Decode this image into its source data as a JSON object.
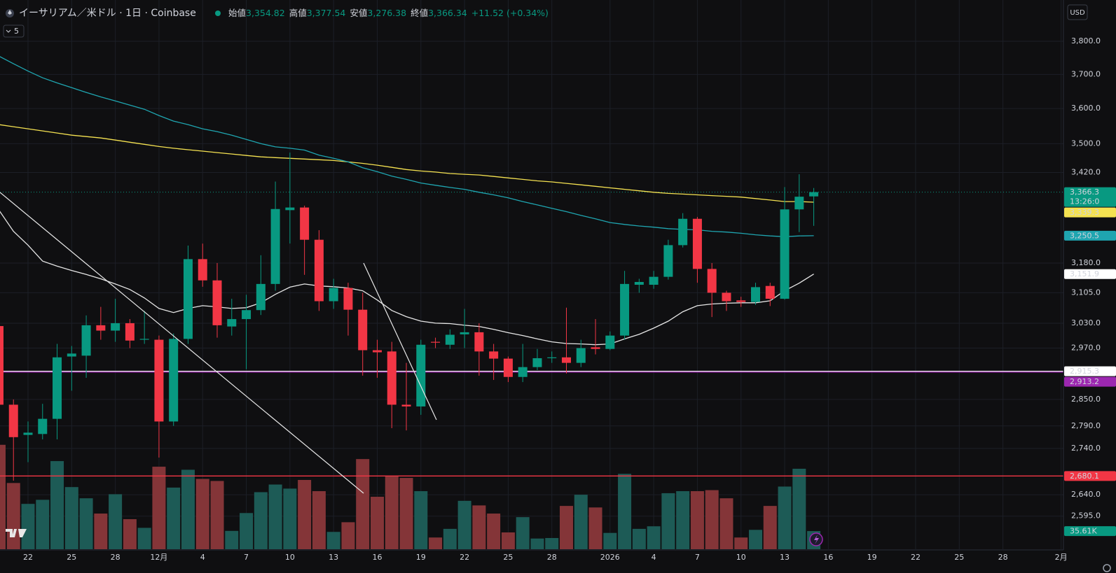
{
  "chart_data": {
    "type": "candlestick",
    "log_scale": true,
    "grid": true,
    "ui": {
      "indicator_count": "5",
      "currency": "USD"
    },
    "legend": {
      "symbol": "イーサリアム／米ドル · 1日 · Coinbase",
      "open_label": "始値",
      "open": "3,354.82",
      "high_label": "高値",
      "high": "3,377.54",
      "low_label": "安値",
      "low": "3,276.38",
      "close_label": "終値",
      "close": "3,366.34",
      "change": "+11.52 (+0.34%)"
    },
    "countdown": "13:26:0",
    "ylim": [
      2527,
      3928
    ],
    "yticks": [
      {
        "value": 3800,
        "label": "3,800.0"
      },
      {
        "value": 3700,
        "label": "3,700.0"
      },
      {
        "value": 3600,
        "label": "3,600.0"
      },
      {
        "value": 3500,
        "label": "3,500.0"
      },
      {
        "value": 3420,
        "label": "3,420.0"
      },
      {
        "value": 3180,
        "label": "3,180.0"
      },
      {
        "value": 3105,
        "label": "3,105.0"
      },
      {
        "value": 3030,
        "label": "3,030.0"
      },
      {
        "value": 2970,
        "label": "2,970.0"
      },
      {
        "value": 2850,
        "label": "2,850.0"
      },
      {
        "value": 2790,
        "label": "2,790.0"
      },
      {
        "value": 2740,
        "label": "2,740.0"
      },
      {
        "value": 2640,
        "label": "2,640.0"
      },
      {
        "value": 2595,
        "label": "2,595.0"
      }
    ],
    "categories": [
      null,
      null,
      "22",
      null,
      null,
      "25",
      null,
      null,
      "28",
      null,
      null,
      "12月",
      null,
      null,
      "4",
      null,
      null,
      "7",
      null,
      null,
      "10",
      null,
      null,
      "13",
      null,
      null,
      "16",
      null,
      null,
      "19",
      null,
      null,
      "22",
      null,
      null,
      "25",
      null,
      null,
      "28",
      null,
      null,
      null,
      "2026",
      null,
      null,
      "4",
      null,
      null,
      "7",
      null,
      null,
      "10",
      null,
      null,
      "13",
      null,
      null,
      "16",
      null,
      null,
      "19",
      null,
      null,
      "22",
      null,
      null,
      "25",
      null,
      null,
      "28",
      null,
      null,
      null,
      "2月"
    ],
    "up_color": "#089981",
    "down_color": "#f23645",
    "candles": {
      "open": [
        3023,
        2838,
        2770,
        2772,
        2806,
        2950,
        2952,
        3025,
        3012,
        3030,
        2990,
        2990,
        2800,
        2992,
        3190,
        3136,
        3022,
        3040,
        3062,
        3127,
        3318,
        3325,
        3240,
        3084,
        3117,
        3063,
        2965,
        2962,
        2838,
        2834,
        2985,
        2978,
        3003,
        3008,
        2962,
        2945,
        2902,
        2925,
        2946,
        2948,
        2935,
        2972,
        2968,
        3000,
        3125,
        3125,
        3145,
        3226,
        3295,
        3165,
        3105,
        3086,
        3082,
        3122,
        3090,
        3320,
        3354.82,
        null,
        null,
        null,
        null,
        null,
        null,
        null,
        null,
        null,
        null,
        null,
        null,
        null,
        null,
        null,
        null,
        null
      ],
      "high": [
        3040,
        2850,
        2800,
        2840,
        2980,
        2975,
        3049,
        3070,
        3090,
        3040,
        3060,
        3000,
        3005,
        3225,
        3230,
        3180,
        3090,
        3100,
        3200,
        3395,
        3475,
        3330,
        3265,
        3140,
        3130,
        3105,
        2990,
        2985,
        2935,
        2990,
        2995,
        3015,
        3065,
        3030,
        2980,
        2950,
        2980,
        2968,
        2962,
        3068,
        2990,
        3040,
        3010,
        3160,
        3140,
        3160,
        3240,
        3310,
        3300,
        3180,
        3110,
        3095,
        3130,
        3130,
        3380,
        3415,
        3377.54,
        null,
        null,
        null,
        null,
        null,
        null,
        null,
        null,
        null,
        null,
        null,
        null,
        null,
        null,
        null,
        null,
        null
      ],
      "low": [
        2830,
        2670,
        2710,
        2760,
        2760,
        2870,
        2900,
        2990,
        2985,
        2970,
        2980,
        2720,
        2790,
        2980,
        3120,
        2995,
        3000,
        2920,
        3050,
        3110,
        3230,
        3150,
        3060,
        3065,
        3000,
        2905,
        2900,
        2785,
        2780,
        2815,
        2970,
        2968,
        2970,
        2905,
        2895,
        2890,
        2890,
        2918,
        2935,
        2910,
        2925,
        2955,
        2965,
        2990,
        3105,
        3115,
        3138,
        3220,
        3130,
        3045,
        3060,
        3070,
        3075,
        3072,
        3088,
        3260,
        3276.38,
        null,
        null,
        null,
        null,
        null,
        null,
        null,
        null,
        null,
        null,
        null,
        null,
        null,
        null,
        null,
        null,
        null
      ],
      "close": [
        2838,
        2765,
        2775,
        2806,
        2948,
        2957,
        3025,
        3012,
        3030,
        2988,
        2992,
        2800,
        2992,
        3190,
        3136,
        3025,
        3040,
        3062,
        3127,
        3321,
        3325,
        3240,
        3084,
        3117,
        3063,
        2965,
        2960,
        2838,
        2834,
        2978,
        2983,
        3002,
        3008,
        2962,
        2945,
        2902,
        2925,
        2946,
        2948,
        2935,
        2970,
        2968,
        3000,
        3127,
        3132,
        3145,
        3226,
        3295,
        3165,
        3105,
        3084,
        3082,
        3119,
        3090,
        3320,
        3354,
        3366.34,
        null,
        null,
        null,
        null,
        null,
        null,
        null,
        null,
        null,
        null,
        null,
        null,
        null,
        null,
        null,
        null,
        null
      ]
    },
    "volume": {
      "up_color": "#1d5b56",
      "down_color": "#843538",
      "ylim": [
        0,
        250
      ],
      "values": [
        205,
        130,
        89,
        97,
        173,
        122,
        100,
        70,
        108,
        59,
        42,
        162,
        121,
        156,
        138,
        134,
        36,
        71,
        112,
        127,
        119,
        136,
        114,
        34,
        53,
        177,
        103,
        144,
        140,
        114,
        23,
        40,
        95,
        86,
        70,
        33,
        63,
        21,
        22,
        85,
        107,
        82,
        32,
        148,
        40,
        45,
        110,
        114,
        114,
        116,
        100,
        23,
        38,
        85,
        123,
        158,
        35.61,
        null,
        null,
        null,
        null,
        null,
        null,
        null,
        null,
        null,
        null,
        null,
        null,
        null,
        null,
        null,
        null,
        null
      ],
      "label": {
        "value": 35.61,
        "label": "35.61K"
      }
    },
    "moving_averages": [
      {
        "color": "#f5e251",
        "values": [
          3554,
          3548,
          3542,
          3536,
          3530,
          3524,
          3520,
          3516,
          3510,
          3504,
          3498,
          3492,
          3487,
          3483,
          3479,
          3475,
          3471,
          3467,
          3463,
          3461,
          3459,
          3457,
          3455,
          3453,
          3449,
          3445,
          3440,
          3434,
          3428,
          3424,
          3421,
          3417,
          3415,
          3413,
          3409,
          3405,
          3401,
          3397,
          3394,
          3390,
          3386,
          3382,
          3378,
          3374,
          3370,
          3366,
          3363,
          3361,
          3359,
          3357,
          3355,
          3353,
          3349,
          3345,
          3341,
          3341,
          3339.3,
          null,
          null,
          null,
          null,
          null,
          null,
          null,
          null,
          null,
          null,
          null,
          null,
          null,
          null,
          null,
          null,
          null
        ]
      },
      {
        "color": "#1fa5b0",
        "values": [
          3755,
          3732,
          3710,
          3690,
          3675,
          3661,
          3647,
          3634,
          3622,
          3610,
          3598,
          3580,
          3564,
          3554,
          3542,
          3534,
          3524,
          3512,
          3500,
          3491,
          3487,
          3482,
          3468,
          3459,
          3449,
          3433,
          3422,
          3410,
          3401,
          3391,
          3385,
          3379,
          3374,
          3366,
          3359,
          3351,
          3341,
          3332,
          3323,
          3314,
          3304,
          3295,
          3285,
          3280,
          3276,
          3273,
          3269,
          3267,
          3266,
          3262,
          3260,
          3257,
          3253,
          3250,
          3248,
          3250,
          3250.5,
          null,
          null,
          null,
          null,
          null,
          null,
          null,
          null,
          null,
          null,
          null,
          null,
          null,
          null,
          null,
          null,
          null
        ]
      },
      {
        "color": "#e6e6e6",
        "values": [
          3318,
          3262,
          3226,
          3185,
          3172,
          3161,
          3151,
          3140,
          3127,
          3113,
          3092,
          3066,
          3056,
          3066,
          3073,
          3070,
          3066,
          3068,
          3080,
          3101,
          3119,
          3127,
          3122,
          3120,
          3117,
          3110,
          3087,
          3061,
          3046,
          3035,
          3030,
          3029,
          3025,
          3022,
          3015,
          3007,
          3000,
          2992,
          2985,
          2981,
          2980,
          2978,
          2980,
          2992,
          3003,
          3018,
          3035,
          3058,
          3073,
          3077,
          3079,
          3080,
          3080,
          3085,
          3110,
          3129,
          3151.9,
          null,
          null,
          null,
          null,
          null,
          null,
          null,
          null,
          null,
          null,
          null,
          null,
          null,
          null,
          null,
          null,
          null
        ]
      }
    ],
    "price_labels": [
      {
        "value": 3366.3,
        "label": "3,366.3",
        "color": "#089981",
        "text_color": "#ffffff",
        "line": "dotted",
        "countdown": true
      },
      {
        "value": 3339.3,
        "label": "3,339.3",
        "color": "#f5e251",
        "text_color": "#131722"
      },
      {
        "value": 3250.5,
        "label": "3,250.5",
        "color": "#1fa5b0",
        "text_color": "#ffffff"
      },
      {
        "value": 3151.9,
        "label": "3,151.9",
        "color": "#ffffff",
        "text_color": "#131722"
      },
      {
        "value": 2915.3,
        "label": "2,915.3",
        "color": "#ffffff",
        "text_color": "#131722",
        "line": "solid"
      },
      {
        "value": 2913.2,
        "label": "2,913.2",
        "color": "#9c27b0",
        "text_color": "#ffffff",
        "line": "solid"
      },
      {
        "value": 2680.1,
        "label": "2,680.1",
        "color": "#f23645",
        "text_color": "#ffffff",
        "line": "solid"
      }
    ]
  }
}
